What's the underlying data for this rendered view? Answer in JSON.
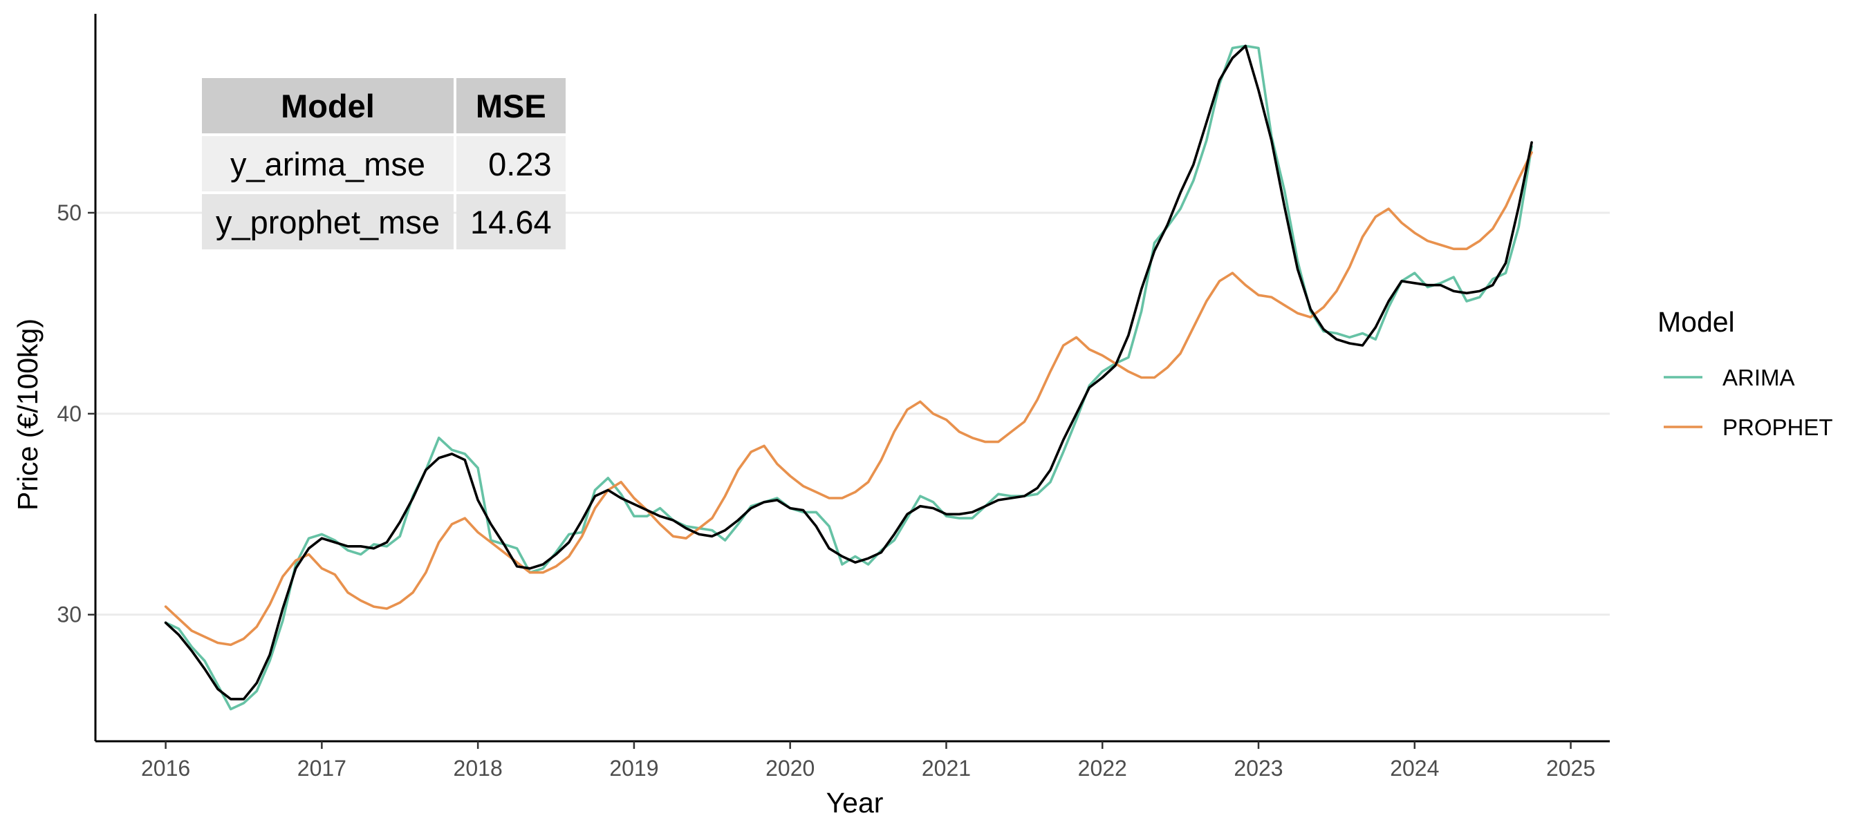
{
  "chart_data": {
    "type": "line",
    "xlabel": "Year",
    "ylabel": "Price (€/100kg)",
    "xlim": [
      2015.55,
      2025.25
    ],
    "ylim": [
      23.7,
      59.9
    ],
    "x_ticks": [
      2016,
      2017,
      2018,
      2019,
      2020,
      2021,
      2022,
      2023,
      2024,
      2025
    ],
    "y_ticks": [
      30,
      40,
      50
    ],
    "grid": "horizontal major lines",
    "legend": {
      "title": "Model",
      "position": "right",
      "entries": [
        {
          "label": "ARIMA",
          "color": "#66c2a5"
        },
        {
          "label": "PROPHET",
          "color": "#e8914d"
        }
      ]
    },
    "x_start": 2016.0,
    "x_step_months": 1,
    "series": [
      {
        "color": "#000000",
        "values": [
          29.6,
          29.0,
          28.2,
          27.3,
          26.3,
          25.8,
          25.8,
          26.6,
          28.0,
          30.3,
          32.3,
          33.3,
          33.8,
          33.6,
          33.4,
          33.4,
          33.3,
          33.6,
          34.6,
          35.8,
          37.2,
          37.8,
          38.0,
          37.7,
          35.7,
          34.5,
          33.5,
          32.4,
          32.3,
          32.5,
          33.0,
          33.6,
          34.7,
          35.9,
          36.2,
          35.8,
          35.5,
          35.2,
          34.9,
          34.7,
          34.3,
          34.0,
          33.9,
          34.2,
          34.7,
          35.3,
          35.6,
          35.7,
          35.3,
          35.2,
          34.4,
          33.3,
          32.9,
          32.6,
          32.8,
          33.1,
          34.0,
          35.0,
          35.4,
          35.3,
          35.0,
          35.0,
          35.1,
          35.4,
          35.7,
          35.8,
          35.9,
          36.3,
          37.2,
          38.7,
          40.0,
          41.3,
          41.8,
          42.4,
          43.9,
          46.2,
          48.1,
          49.4,
          51.0,
          52.4,
          54.5,
          56.6,
          57.7,
          58.3,
          56.1,
          53.6,
          50.3,
          47.2,
          45.2,
          44.2,
          43.7,
          43.5,
          43.4,
          44.3,
          45.6,
          46.6,
          46.5,
          46.4,
          46.4,
          46.1,
          46.0,
          46.1,
          46.4,
          47.5,
          50.3,
          53.5
        ]
      },
      {
        "name": "ARIMA",
        "color": "#66c2a5",
        "values": [
          29.6,
          29.3,
          28.4,
          27.7,
          26.5,
          25.3,
          25.6,
          26.2,
          27.7,
          29.7,
          32.5,
          33.8,
          34.0,
          33.7,
          33.2,
          33.0,
          33.5,
          33.4,
          33.9,
          35.9,
          37.2,
          38.8,
          38.2,
          38.0,
          37.3,
          33.7,
          33.5,
          33.3,
          32.1,
          32.3,
          33.1,
          34.0,
          34.1,
          36.2,
          36.8,
          36.0,
          34.9,
          34.9,
          35.3,
          34.7,
          34.4,
          34.3,
          34.2,
          33.7,
          34.5,
          35.4,
          35.6,
          35.8,
          35.3,
          35.1,
          35.1,
          34.4,
          32.5,
          32.9,
          32.5,
          33.2,
          33.7,
          34.8,
          35.9,
          35.6,
          34.9,
          34.8,
          34.8,
          35.4,
          36.0,
          35.9,
          35.9,
          36.0,
          36.6,
          38.1,
          39.7,
          41.4,
          42.1,
          42.5,
          42.8,
          45.1,
          48.5,
          49.3,
          50.2,
          51.6,
          53.6,
          56.4,
          58.2,
          58.3,
          58.2,
          53.8,
          51.1,
          47.6,
          45.1,
          44.1,
          44.0,
          43.8,
          44.0,
          43.7,
          45.3,
          46.6,
          47.0,
          46.3,
          46.5,
          46.8,
          45.6,
          45.8,
          46.7,
          47.0,
          49.3,
          53.3
        ]
      },
      {
        "name": "PROPHET",
        "color": "#e8914d",
        "values": [
          30.4,
          29.8,
          29.2,
          28.9,
          28.6,
          28.5,
          28.8,
          29.4,
          30.5,
          31.9,
          32.7,
          33.0,
          32.3,
          32.0,
          31.1,
          30.7,
          30.4,
          30.3,
          30.6,
          31.1,
          32.1,
          33.6,
          34.5,
          34.8,
          34.1,
          33.6,
          33.1,
          32.6,
          32.1,
          32.1,
          32.4,
          32.9,
          33.9,
          35.3,
          36.2,
          36.6,
          35.8,
          35.2,
          34.5,
          33.9,
          33.8,
          34.3,
          34.8,
          35.9,
          37.2,
          38.1,
          38.4,
          37.5,
          36.9,
          36.4,
          36.1,
          35.8,
          35.8,
          36.1,
          36.6,
          37.7,
          39.1,
          40.2,
          40.6,
          40.0,
          39.7,
          39.1,
          38.8,
          38.6,
          38.6,
          39.1,
          39.6,
          40.7,
          42.1,
          43.4,
          43.8,
          43.2,
          42.9,
          42.5,
          42.1,
          41.8,
          41.8,
          42.3,
          43.0,
          44.3,
          45.6,
          46.6,
          47.0,
          46.4,
          45.9,
          45.8,
          45.4,
          45.0,
          44.8,
          45.3,
          46.1,
          47.3,
          48.8,
          49.8,
          50.2,
          49.5,
          49.0,
          48.6,
          48.4,
          48.2,
          48.2,
          48.6,
          49.2,
          50.3,
          51.7,
          53.0
        ]
      }
    ]
  },
  "table": {
    "headers": [
      "Model",
      "MSE"
    ],
    "rows": [
      {
        "model": "y_arima_mse",
        "mse": "0.23"
      },
      {
        "model": "y_prophet_mse",
        "mse": "14.64"
      }
    ]
  }
}
